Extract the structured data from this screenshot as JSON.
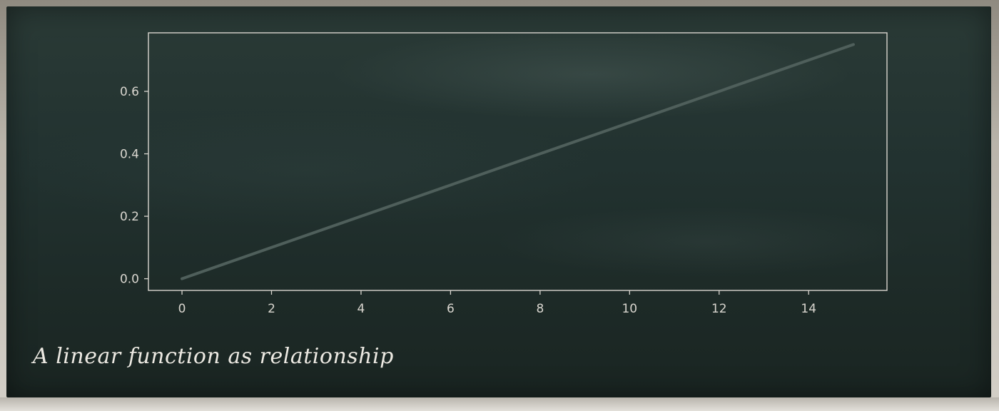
{
  "caption": "A linear function as relationship",
  "colors": {
    "board": "#223230",
    "axes": "#d9d6cf",
    "line": "#4f5f5b",
    "text": "#ece9e2"
  },
  "chart_data": {
    "type": "line",
    "title": "",
    "xlabel": "",
    "ylabel": "",
    "xlim": [
      -0.75,
      15.75
    ],
    "ylim": [
      -0.0375,
      0.7875
    ],
    "xticks": [
      0,
      2,
      4,
      6,
      8,
      10,
      12,
      14
    ],
    "yticks": [
      0.0,
      0.2,
      0.4,
      0.6
    ],
    "xtick_labels": [
      "0",
      "2",
      "4",
      "6",
      "8",
      "10",
      "12",
      "14"
    ],
    "ytick_labels": [
      "0.0",
      "0.2",
      "0.4",
      "0.6"
    ],
    "grid": false,
    "series": [
      {
        "x": [
          0,
          15
        ],
        "y": [
          0.0,
          0.75
        ]
      }
    ]
  }
}
